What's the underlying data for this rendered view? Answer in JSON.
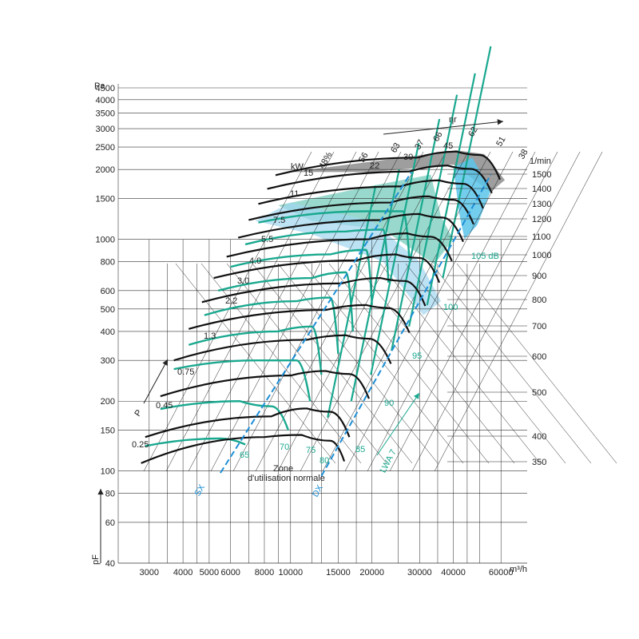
{
  "chart_data": {
    "type": "line",
    "title": "",
    "xlabel": "m³/h",
    "ylabel": "Pa",
    "x_axis": {
      "scale": "log",
      "range": [
        2500,
        75000
      ],
      "ticks": [
        3000,
        4000,
        5000,
        6000,
        8000,
        10000,
        15000,
        20000,
        30000,
        40000,
        60000
      ],
      "tick_labels": [
        "3000",
        "4000",
        "5000",
        "6000",
        "8000",
        "10000",
        "15000",
        "20000",
        "30000",
        "40000",
        "60000"
      ],
      "unit": "m³/h"
    },
    "y_axis": {
      "scale": "log",
      "range": [
        40,
        4500
      ],
      "ticks": [
        40,
        60,
        80,
        100,
        150,
        200,
        300,
        400,
        500,
        600,
        800,
        1000,
        1500,
        2000,
        2500,
        3000,
        3500,
        4000,
        4500
      ],
      "tick_labels": [
        "40",
        "60",
        "80",
        "100",
        "150",
        "200",
        "300",
        "400",
        "500",
        "600",
        "800",
        "1000",
        "1500",
        "2000",
        "2500",
        "3000",
        "3500",
        "4000",
        "4500"
      ],
      "unit": "Pa"
    },
    "y_axis_bottom_symbol": "pF",
    "speed_scale": {
      "unit": "1/min",
      "values": [
        350,
        400,
        500,
        600,
        700,
        800,
        900,
        1000,
        1100,
        1200,
        1300,
        1400,
        1500
      ],
      "labels": [
        "350",
        "400",
        "500",
        "600",
        "700",
        "800",
        "900",
        "1000",
        "1100",
        "1200",
        "1300",
        "1400",
        "1500"
      ]
    },
    "power_labels": {
      "unit": "kW",
      "values": [
        "15",
        "11",
        "7.5",
        "5.5",
        "4.0",
        "3.0",
        "2.2",
        "1.3",
        "0.75",
        "0.45",
        "0.25"
      ]
    },
    "efficiency_labels": {
      "symbol": "ηr",
      "values": [
        "48%",
        "56",
        "63",
        "22",
        "30",
        "37",
        "66",
        "45",
        "62",
        "51",
        "38"
      ]
    },
    "sound_labels": {
      "symbol": "LWA 7",
      "values": [
        "65",
        "70",
        "75",
        "80",
        "85",
        "90",
        "95",
        "100",
        "105 dB"
      ]
    },
    "series": [
      {
        "name": "350",
        "points": [
          [
            2800,
            108
          ],
          [
            8000,
            140
          ],
          [
            11000,
            143
          ],
          [
            14000,
            135
          ],
          [
            15800,
            110
          ]
        ]
      },
      {
        "name": "400",
        "points": [
          [
            2900,
            140
          ],
          [
            8500,
            172
          ],
          [
            11500,
            186
          ],
          [
            14000,
            180
          ],
          [
            16500,
            140
          ]
        ]
      },
      {
        "name": "500",
        "points": [
          [
            3300,
            210
          ],
          [
            10000,
            258
          ],
          [
            13500,
            270
          ],
          [
            16500,
            262
          ],
          [
            19500,
            205
          ]
        ]
      },
      {
        "name": "600",
        "points": [
          [
            3700,
            300
          ],
          [
            11500,
            368
          ],
          [
            16000,
            385
          ],
          [
            19500,
            372
          ],
          [
            23500,
            290
          ]
        ]
      },
      {
        "name": "700",
        "points": [
          [
            4200,
            410
          ],
          [
            13500,
            495
          ],
          [
            19000,
            520
          ],
          [
            23000,
            505
          ],
          [
            27500,
            395
          ]
        ]
      },
      {
        "name": "800",
        "points": [
          [
            4700,
            535
          ],
          [
            15500,
            645
          ],
          [
            21500,
            680
          ],
          [
            26500,
            660
          ],
          [
            31500,
            515
          ]
        ]
      },
      {
        "name": "900",
        "points": [
          [
            5200,
            680
          ],
          [
            17500,
            810
          ],
          [
            24500,
            860
          ],
          [
            30000,
            830
          ],
          [
            35500,
            650
          ]
        ]
      },
      {
        "name": "1000",
        "points": [
          [
            5800,
            840
          ],
          [
            19500,
            1000
          ],
          [
            27000,
            1060
          ],
          [
            33000,
            1025
          ],
          [
            39500,
            805
          ]
        ]
      },
      {
        "name": "1100",
        "points": [
          [
            6400,
            1015
          ],
          [
            21500,
            1210
          ],
          [
            30000,
            1285
          ],
          [
            36500,
            1240
          ],
          [
            43500,
            975
          ]
        ]
      },
      {
        "name": "1200",
        "points": [
          [
            7000,
            1210
          ],
          [
            23500,
            1440
          ],
          [
            32500,
            1530
          ],
          [
            40000,
            1480
          ],
          [
            47500,
            1160
          ]
        ]
      },
      {
        "name": "1300",
        "points": [
          [
            7600,
            1420
          ],
          [
            25500,
            1690
          ],
          [
            35500,
            1795
          ],
          [
            43500,
            1735
          ],
          [
            51500,
            1360
          ]
        ]
      },
      {
        "name": "1400",
        "points": [
          [
            8200,
            1650
          ],
          [
            27500,
            1960
          ],
          [
            38000,
            2080
          ],
          [
            46500,
            2010
          ],
          [
            55500,
            1580
          ]
        ]
      },
      {
        "name": "1500",
        "points": [
          [
            8800,
            1890
          ],
          [
            29500,
            2250
          ],
          [
            41000,
            2390
          ],
          [
            50000,
            2310
          ],
          [
            59500,
            1810
          ]
        ]
      }
    ],
    "operating_zone_labels": [
      "Zone",
      "d'utilisation normale"
    ],
    "region_markers": [
      "SX",
      "DX"
    ],
    "arrow_labels": [
      "P",
      "ηr",
      "LWA 7"
    ],
    "colors": {
      "speed_curve": "#111111",
      "sound_curve": "#1aa88f",
      "dashed_line": "#1e8fd6",
      "zone_cyan": "#5bc4ea",
      "zone_teal": "#7fd0c0",
      "zone_blue": "#9fd6f0",
      "zone_gray": "#8d8d8d"
    },
    "grid": true
  }
}
